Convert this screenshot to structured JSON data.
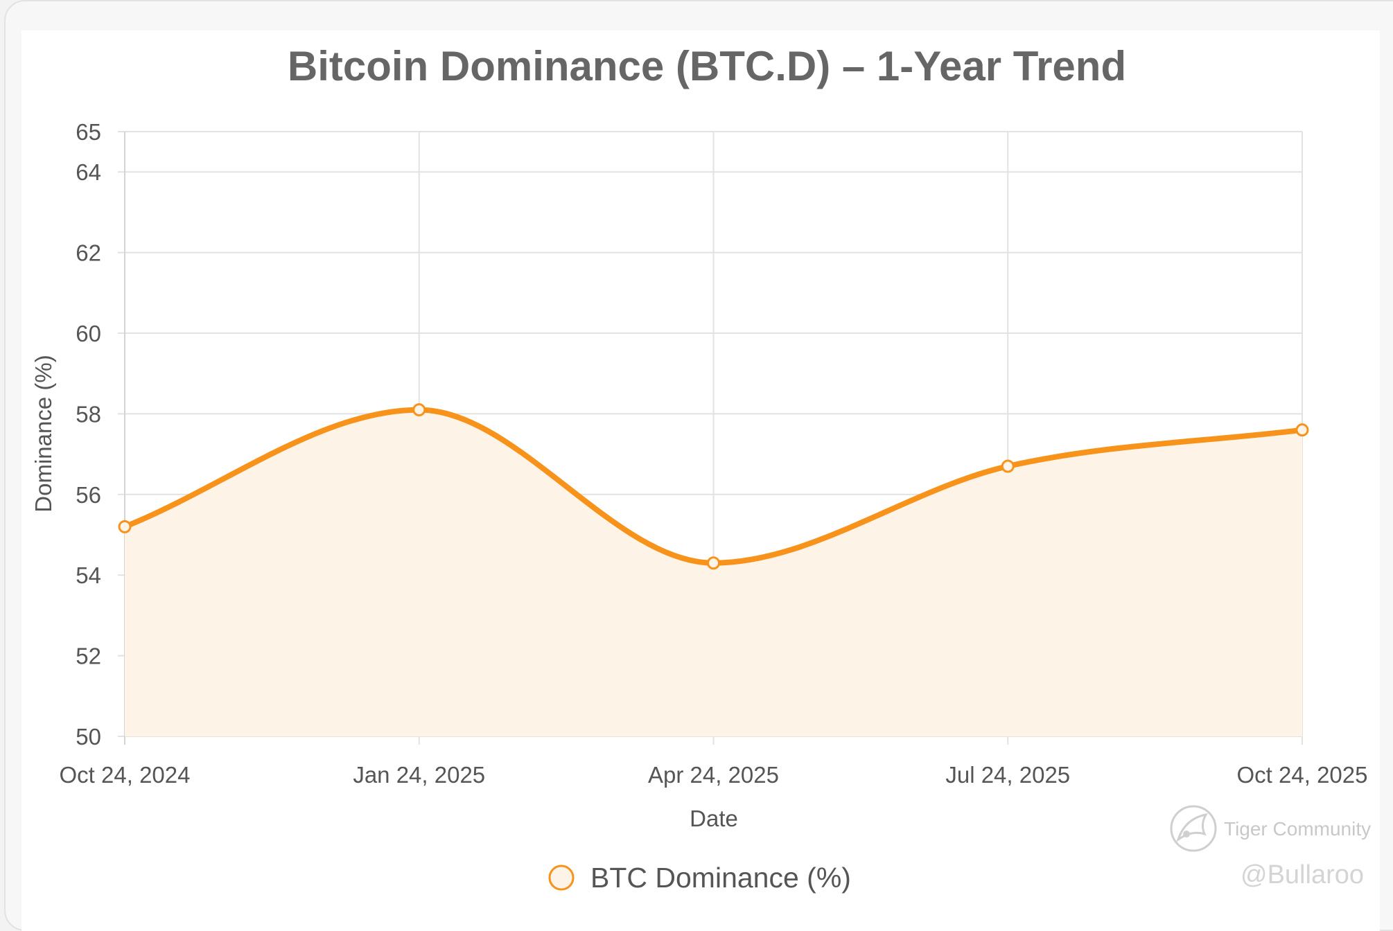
{
  "chart_data": {
    "type": "area",
    "title": "Bitcoin Dominance (BTC.D) – 1-Year Trend",
    "xlabel": "Date",
    "ylabel": "Dominance (%)",
    "x": [
      "Oct 24, 2024",
      "Jan 24, 2025",
      "Apr 24, 2025",
      "Jul 24, 2025",
      "Oct 24, 2025"
    ],
    "yticks": [
      50,
      52,
      54,
      56,
      58,
      60,
      62,
      64,
      65
    ],
    "ylim": [
      50,
      65
    ],
    "series": [
      {
        "name": "BTC Dominance (%)",
        "values": [
          55.2,
          58.1,
          54.3,
          56.7,
          57.6
        ],
        "color": "#f7931a",
        "fill": "#fdf3e7"
      }
    ],
    "grid": true,
    "legend": "bottom-center"
  },
  "watermark": {
    "brand": "Tiger Community",
    "handle": "@Bullaroo"
  }
}
